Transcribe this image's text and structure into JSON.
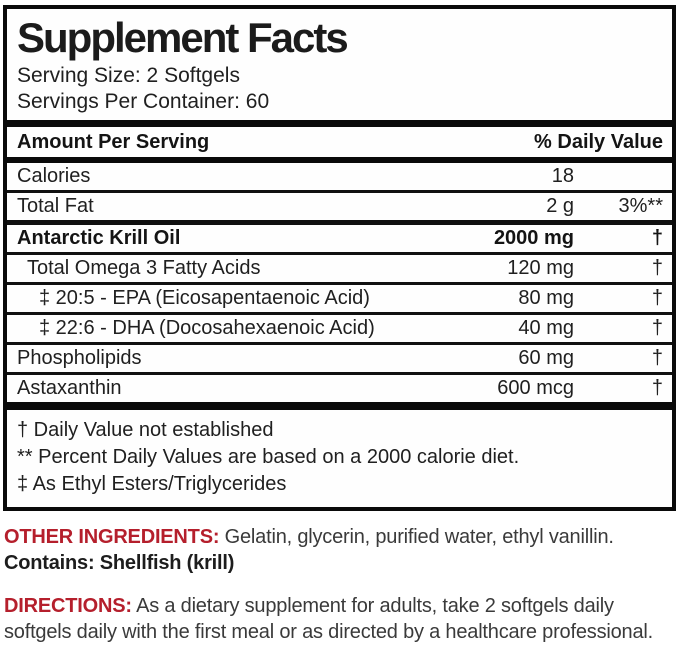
{
  "panel": {
    "title": "Supplement Facts",
    "serving_size": "Serving Size: 2 Softgels",
    "servings_per_container": "Servings Per Container: 60",
    "header": {
      "left": "Amount Per Serving",
      "right": "% Daily Value"
    },
    "rows": [
      {
        "name": "Calories",
        "amount": "18",
        "dv": "",
        "bold": false,
        "indent": 0,
        "sep": "thin"
      },
      {
        "name": "Total Fat",
        "amount": "2 g",
        "dv": "3%**",
        "bold": false,
        "indent": 0,
        "sep": "medium"
      },
      {
        "name": "Antarctic Krill Oil",
        "amount": "2000 mg",
        "dv": "†",
        "bold": true,
        "indent": 0,
        "sep": "thin"
      },
      {
        "name": "Total Omega 3 Fatty Acids",
        "amount": "120 mg",
        "dv": "†",
        "bold": false,
        "indent": 1,
        "sep": "thin"
      },
      {
        "name": "‡ 20:5 - EPA (Eicosapentaenoic Acid)",
        "amount": "80 mg",
        "dv": "†",
        "bold": false,
        "indent": 2,
        "sep": "thin"
      },
      {
        "name": "‡ 22:6 - DHA (Docosahexaenoic Acid)",
        "amount": "40 mg",
        "dv": "†",
        "bold": false,
        "indent": 2,
        "sep": "thin"
      },
      {
        "name": "Phospholipids",
        "amount": "60 mg",
        "dv": "†",
        "bold": false,
        "indent": 0,
        "sep": "thin"
      },
      {
        "name": "Astaxanthin",
        "amount": "600 mcg",
        "dv": "†",
        "bold": false,
        "indent": 0,
        "sep": "last"
      }
    ],
    "footnotes": [
      "† Daily Value not established",
      "** Percent Daily Values are based on a 2000 calorie diet.",
      "‡ As Ethyl Esters/Triglycerides"
    ]
  },
  "below": {
    "other_ingredients_label": "OTHER INGREDIENTS:",
    "other_ingredients_text": " Gelatin, glycerin, purified water, ethyl vanillin.",
    "contains_text": "Contains: Shellfish (krill)",
    "directions_label": "DIRECTIONS:",
    "directions_text": " As a dietary supplement for adults, take 2 softgels daily softgels daily with the first meal or as directed by a healthcare professional."
  },
  "colors": {
    "accent_red": "#b51f2c",
    "ink": "#1d1d1d",
    "border_black": "#0a0a0a"
  }
}
